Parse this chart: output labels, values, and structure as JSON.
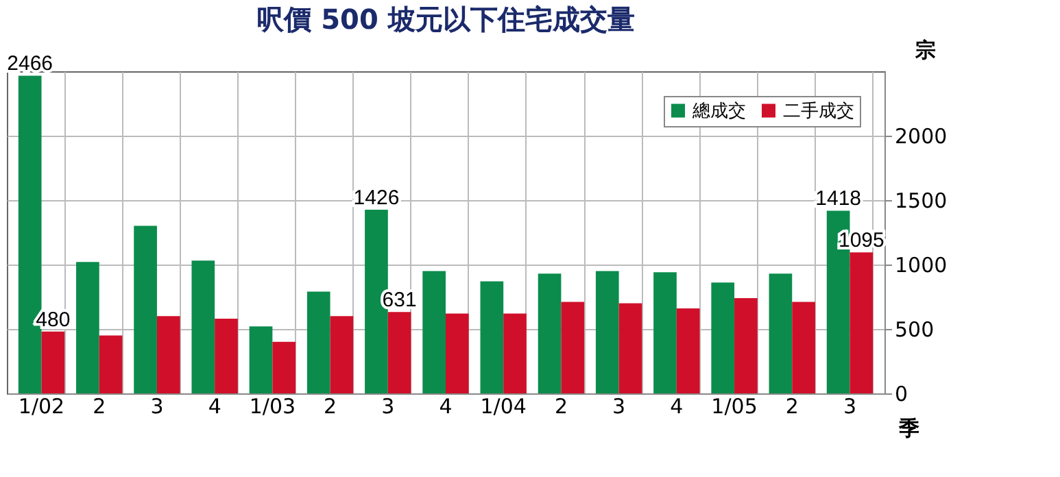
{
  "chart_data": {
    "type": "bar",
    "title": "呎價 500 坡元以下住宅成交量",
    "ylabel": "宗",
    "xlabel": "季",
    "categories": [
      "1/02",
      "2",
      "3",
      "4",
      "1/03",
      "2",
      "3",
      "4",
      "1/04",
      "2",
      "3",
      "4",
      "1/05",
      "2",
      "3"
    ],
    "series": [
      {
        "name": "總成交",
        "color": "#0b8c4c",
        "values": [
          2466,
          1020,
          1300,
          1030,
          520,
          790,
          1426,
          950,
          870,
          930,
          950,
          940,
          860,
          930,
          1418
        ],
        "value_labels": [
          "2466",
          null,
          null,
          null,
          null,
          null,
          "1426",
          null,
          null,
          null,
          null,
          null,
          null,
          null,
          "1418"
        ]
      },
      {
        "name": "二手成交",
        "color": "#d0102a",
        "values": [
          480,
          450,
          600,
          580,
          400,
          600,
          631,
          620,
          620,
          710,
          700,
          660,
          740,
          710,
          1095
        ],
        "value_labels": [
          "480",
          null,
          null,
          null,
          null,
          null,
          "631",
          null,
          null,
          null,
          null,
          null,
          null,
          null,
          "1095"
        ]
      }
    ],
    "ylim": [
      0,
      2500
    ],
    "yticks": [
      0,
      500,
      1000,
      1500,
      2000
    ],
    "grid": true,
    "legend": "top right"
  }
}
